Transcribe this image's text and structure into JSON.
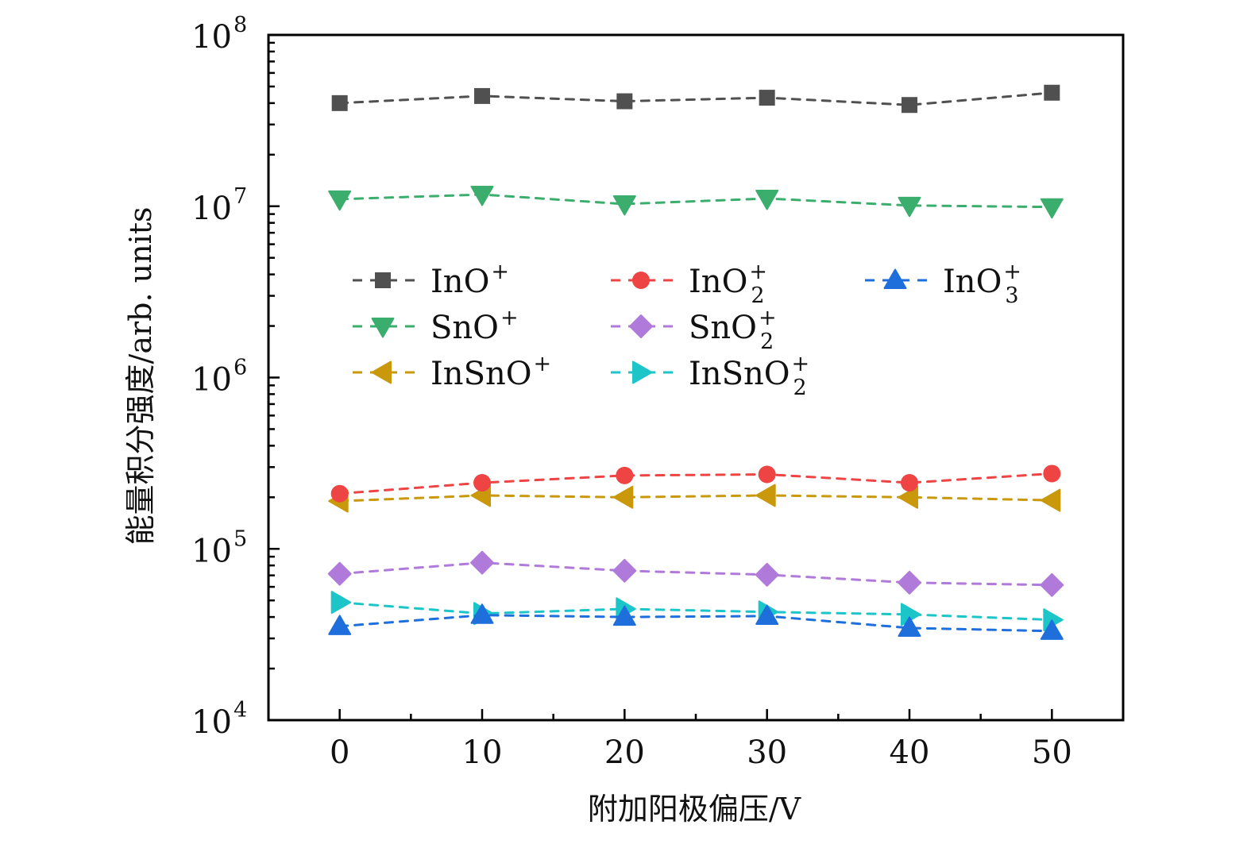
{
  "chart_data": {
    "type": "line",
    "title": "",
    "xlabel": "附加阳极偏压/V",
    "ylabel": "能量积分强度/arb. units",
    "xlim": [
      -5,
      55
    ],
    "ylim": [
      10000,
      100000000
    ],
    "yscale": "log",
    "grid": false,
    "legend_position": "center",
    "legend_columns": 3,
    "x": [
      0,
      10,
      20,
      30,
      40,
      50
    ],
    "xticks": [
      0,
      10,
      20,
      30,
      40,
      50
    ],
    "xtick_labels": [
      "0",
      "10",
      "20",
      "30",
      "40",
      "50"
    ],
    "yticks": [
      10000,
      100000,
      1000000,
      10000000,
      100000000
    ],
    "ytick_labels": [
      {
        "base": "10",
        "exp": "4"
      },
      {
        "base": "10",
        "exp": "5"
      },
      {
        "base": "10",
        "exp": "6"
      },
      {
        "base": "10",
        "exp": "7"
      },
      {
        "base": "10",
        "exp": "8"
      }
    ],
    "series": [
      {
        "name": "InO+",
        "label_main": "InO",
        "label_sup": "+",
        "label_sub": "",
        "color": "#505050",
        "marker": "square",
        "values": [
          40000000,
          44000000,
          41000000,
          43000000,
          39000000,
          46000000
        ]
      },
      {
        "name": "SnO+",
        "label_main": "SnO",
        "label_sup": "+",
        "label_sub": "",
        "color": "#3BAE6E",
        "marker": "triangle-down",
        "values": [
          11000000,
          11700000,
          10300000,
          11100000,
          10100000,
          9900000
        ]
      },
      {
        "name": "InSnO+",
        "label_main": "InSnO",
        "label_sup": "+",
        "label_sub": "",
        "color": "#C9980B",
        "marker": "triangle-left",
        "values": [
          190000,
          205000,
          200000,
          205000,
          200000,
          192000
        ]
      },
      {
        "name": "InO2+",
        "label_main": "InO",
        "label_sup": "+",
        "label_sub": "2",
        "color": "#EE4444",
        "marker": "circle",
        "values": [
          210000,
          243000,
          268000,
          272000,
          243000,
          275000
        ]
      },
      {
        "name": "SnO2+",
        "label_main": "SnO",
        "label_sup": "+",
        "label_sub": "2",
        "color": "#B07ADA",
        "marker": "diamond",
        "values": [
          71500,
          83000,
          74500,
          70600,
          63500,
          61500
        ]
      },
      {
        "name": "InSnO2+",
        "label_main": "InSnO",
        "label_sup": "+",
        "label_sub": "2",
        "color": "#1BC5C8",
        "marker": "triangle-right",
        "values": [
          48700,
          41900,
          44600,
          42800,
          41400,
          38500
        ]
      },
      {
        "name": "InO3+",
        "label_main": "InO",
        "label_sup": "+",
        "label_sub": "3",
        "color": "#1E6FDC",
        "marker": "triangle-up",
        "values": [
          35300,
          41000,
          40000,
          40500,
          34500,
          33100
        ]
      }
    ],
    "legend_order": [
      "InO+",
      "InO2+",
      "InO3+",
      "SnO+",
      "SnO2+",
      "InSnO+",
      "InSnO2+"
    ]
  }
}
